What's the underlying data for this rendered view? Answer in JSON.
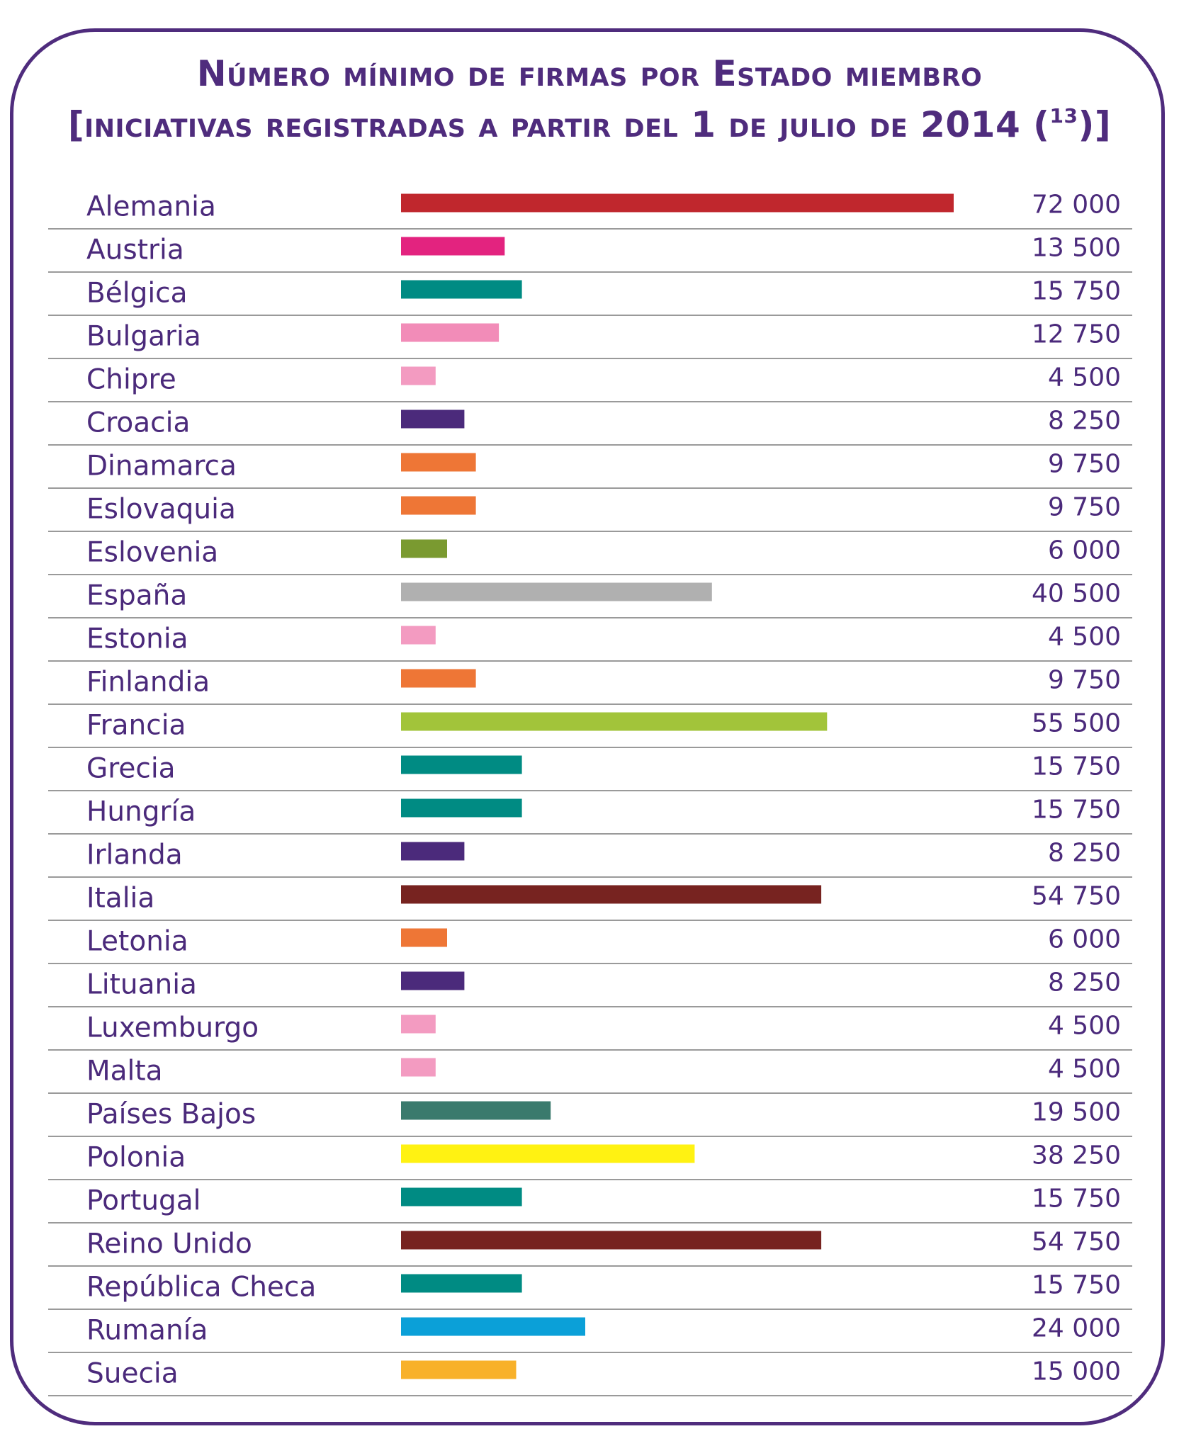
{
  "title": {
    "line1": "Número mínimo de firmas por Estado miembro",
    "line2_prefix": "[iniciativas registradas a partir del 1 de julio de 2014 (",
    "footnote": "13",
    "line2_suffix": ")]"
  },
  "chart_data": {
    "type": "bar",
    "orientation": "horizontal",
    "categories": [
      "Alemania",
      "Austria",
      "Bélgica",
      "Bulgaria",
      "Chipre",
      "Croacia",
      "Dinamarca",
      "Eslovaquia",
      "Eslovenia",
      "España",
      "Estonia",
      "Finlandia",
      "Francia",
      "Grecia",
      "Hungría",
      "Irlanda",
      "Italia",
      "Letonia",
      "Lituania",
      "Luxemburgo",
      "Malta",
      "Países Bajos",
      "Polonia",
      "Portugal",
      "Reino Unido",
      "República Checa",
      "Rumanía",
      "Suecia"
    ],
    "values": [
      72000,
      13500,
      15750,
      12750,
      4500,
      8250,
      9750,
      9750,
      6000,
      40500,
      4500,
      9750,
      55500,
      15750,
      15750,
      8250,
      54750,
      6000,
      8250,
      4500,
      4500,
      19500,
      38250,
      15750,
      54750,
      15750,
      24000,
      15000
    ],
    "value_labels": [
      "72 000",
      "13 500",
      "15 750",
      "12 750",
      "4 500",
      "8 250",
      "9 750",
      "9 750",
      "6 000",
      "40 500",
      "4 500",
      "9 750",
      "55 500",
      "15 750",
      "15 750",
      "8 250",
      "54 750",
      "6 000",
      "8 250",
      "4 500",
      "4 500",
      "19 500",
      "38 250",
      "15 750",
      "54 750",
      "15 750",
      "24 000",
      "15 000"
    ],
    "colors": [
      "#c0272d",
      "#e3237f",
      "#008b83",
      "#f28cb8",
      "#f39bc1",
      "#4b2a7b",
      "#ee7636",
      "#ee7636",
      "#7a9a30",
      "#b0b0b0",
      "#f39bc1",
      "#ee7636",
      "#a2c43a",
      "#008b83",
      "#008b83",
      "#4b2a7b",
      "#772320",
      "#ee7636",
      "#4b2a7b",
      "#f39bc1",
      "#f39bc1",
      "#3a7a6d",
      "#fff212",
      "#008b83",
      "#772320",
      "#008b83",
      "#0ba0d8",
      "#f8b12a"
    ],
    "xlim": [
      0,
      72000
    ],
    "grid": false,
    "legend": "none"
  },
  "style": {
    "text_color": "#4b2a7b",
    "frame_color": "#4f2c7d",
    "divider_color": "#9a9a9a"
  }
}
